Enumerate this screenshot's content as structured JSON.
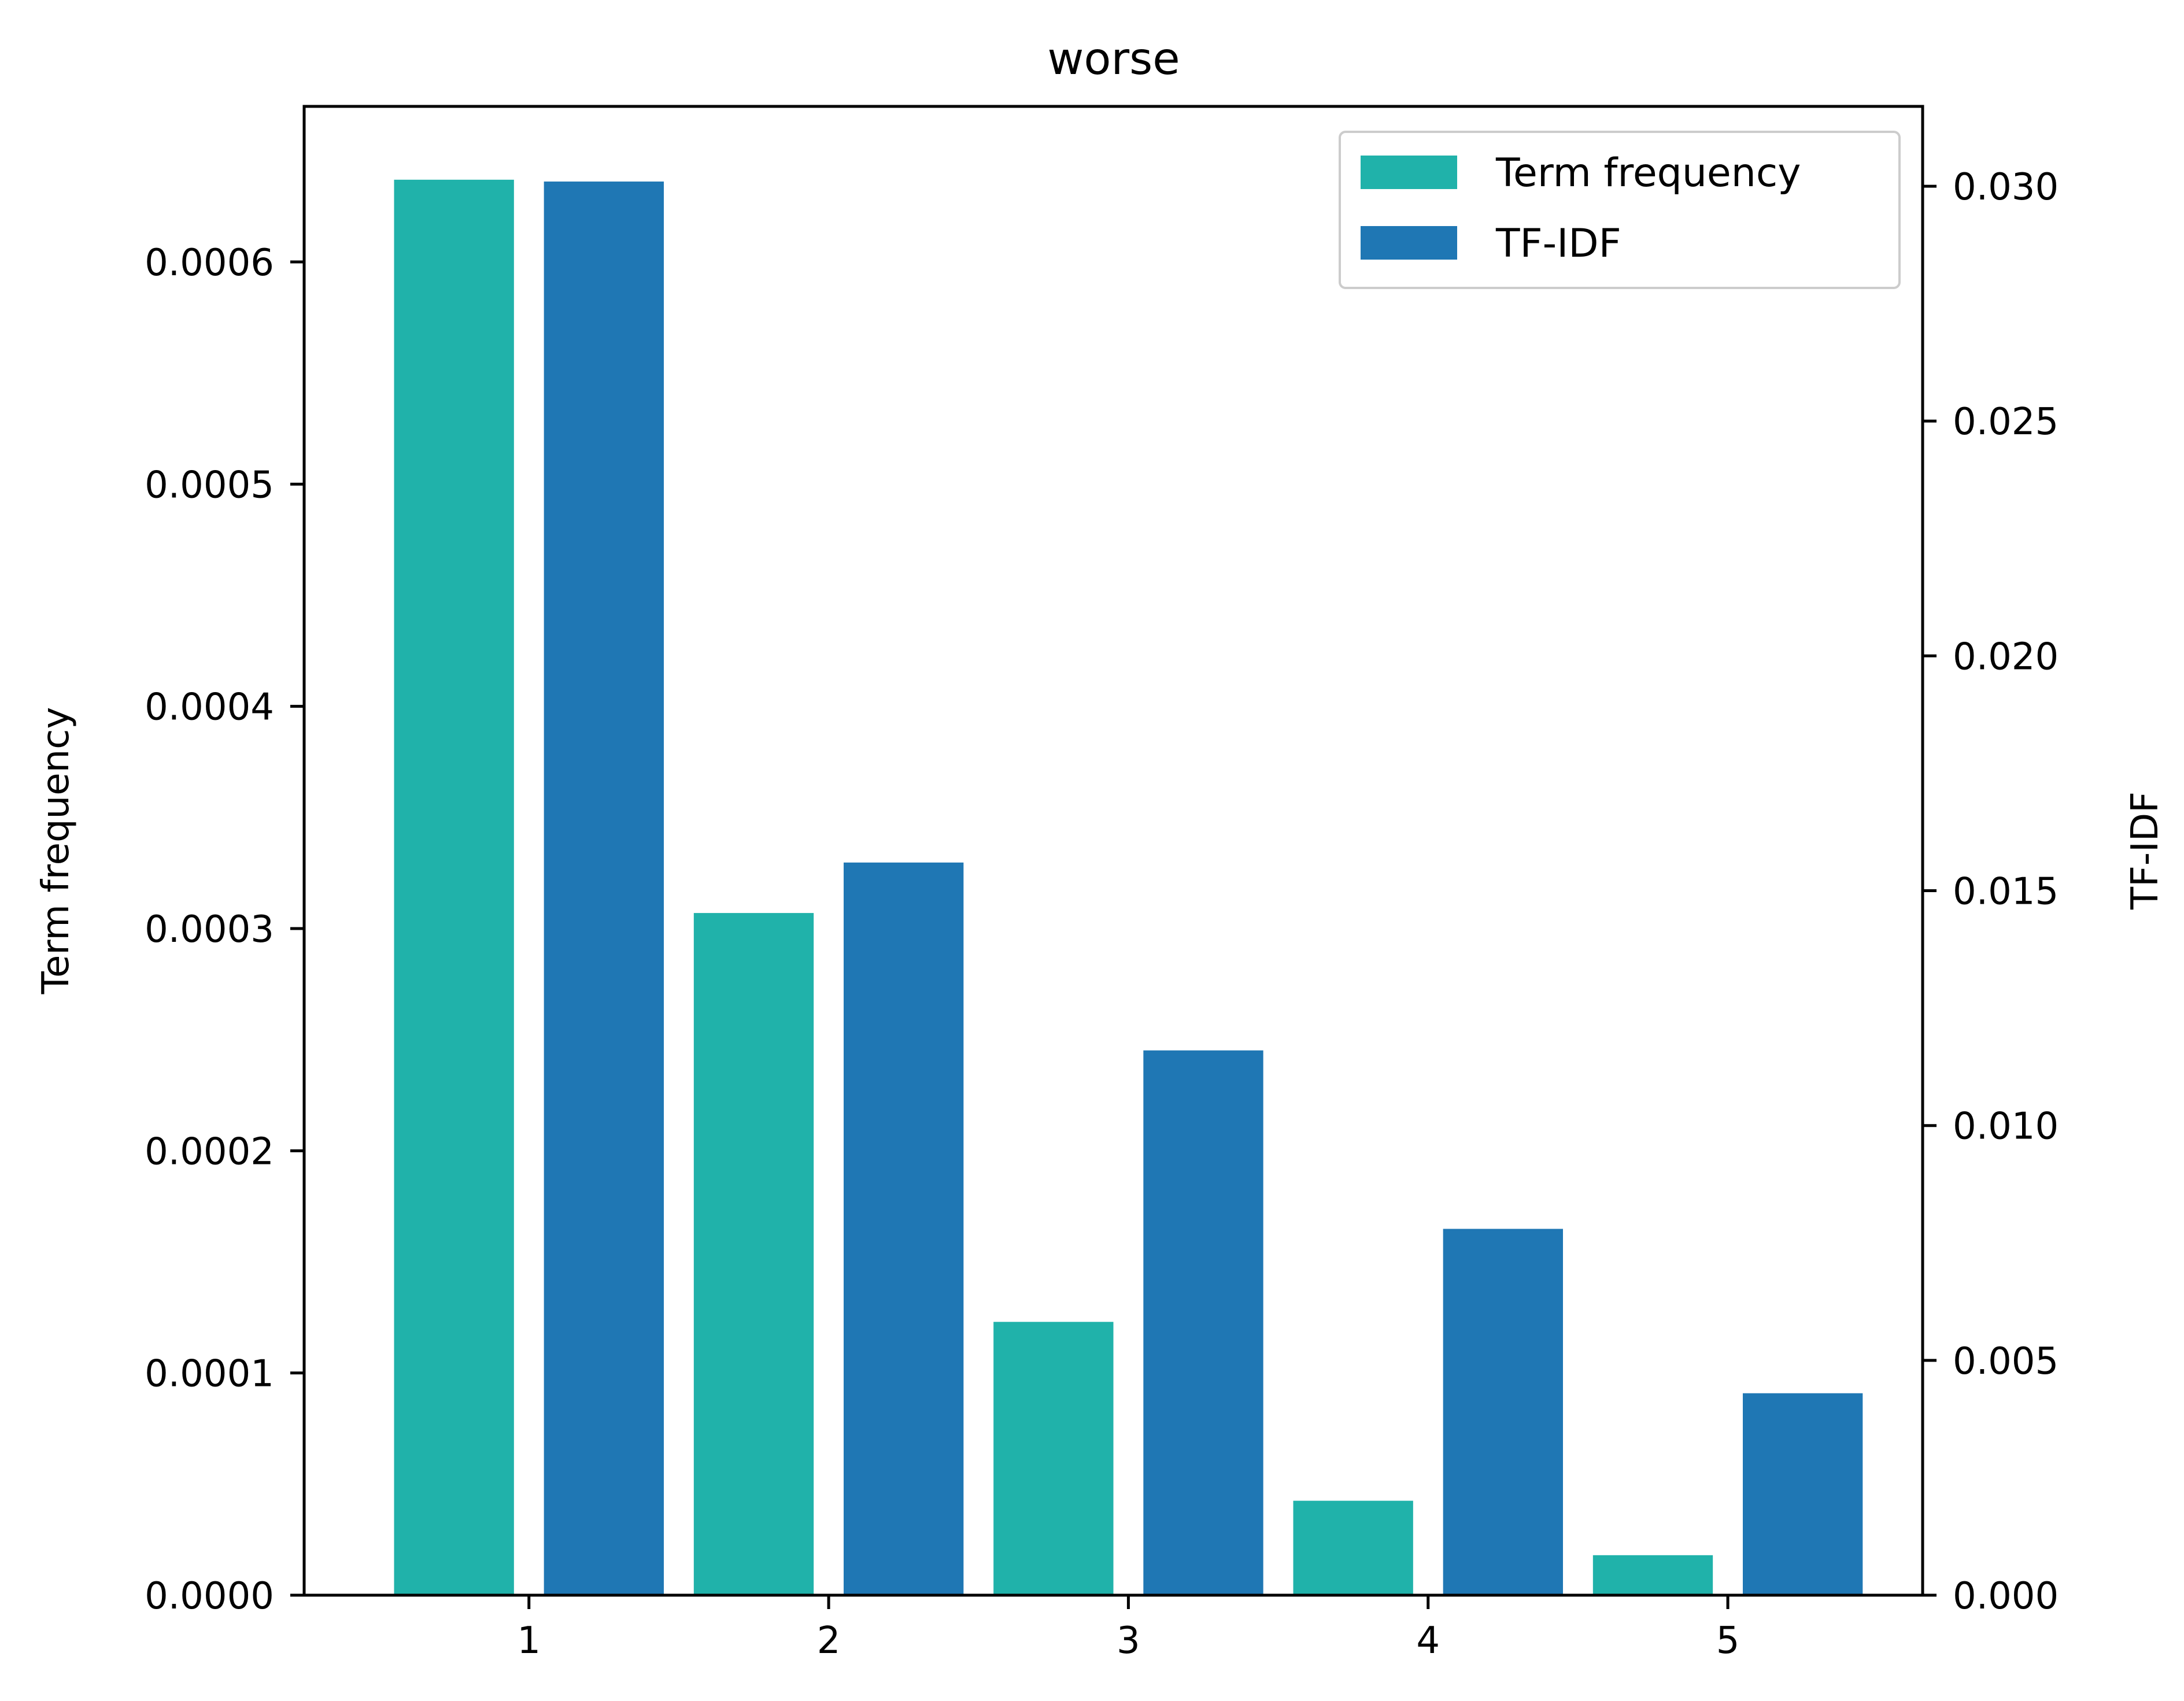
{
  "chart_data": {
    "type": "bar",
    "title": "worse",
    "categories": [
      "1",
      "2",
      "3",
      "4",
      "5"
    ],
    "x": [
      1,
      2,
      3,
      4,
      5
    ],
    "xlabel": "",
    "xlim": [
      0.25,
      5.65
    ],
    "series": [
      {
        "name": "Term frequency",
        "axis": "left",
        "color": "#20b2aa",
        "values": [
          0.000637,
          0.000307,
          0.000123,
          4.25e-05,
          1.8e-05
        ]
      },
      {
        "name": "TF-IDF",
        "axis": "right",
        "color": "#1f77b4",
        "values": [
          0.0301,
          0.0156,
          0.0116,
          0.0078,
          0.0043
        ]
      }
    ],
    "y_left": {
      "label": "Term frequency",
      "lim": [
        0,
        0.00067
      ],
      "ticks": [
        0,
        0.0001,
        0.0002,
        0.0003,
        0.0004,
        0.0005,
        0.0006
      ],
      "tick_labels": [
        "0.0000",
        "0.0001",
        "0.0002",
        "0.0003",
        "0.0004",
        "0.0005",
        "0.0006"
      ]
    },
    "y_right": {
      "label": "TF-IDF",
      "lim": [
        0,
        0.0317
      ],
      "ticks": [
        0,
        0.005,
        0.01,
        0.015,
        0.02,
        0.025,
        0.03
      ],
      "tick_labels": [
        "0.000",
        "0.005",
        "0.010",
        "0.015",
        "0.020",
        "0.025",
        "0.030"
      ]
    },
    "grid": false,
    "legend": "top-right"
  }
}
